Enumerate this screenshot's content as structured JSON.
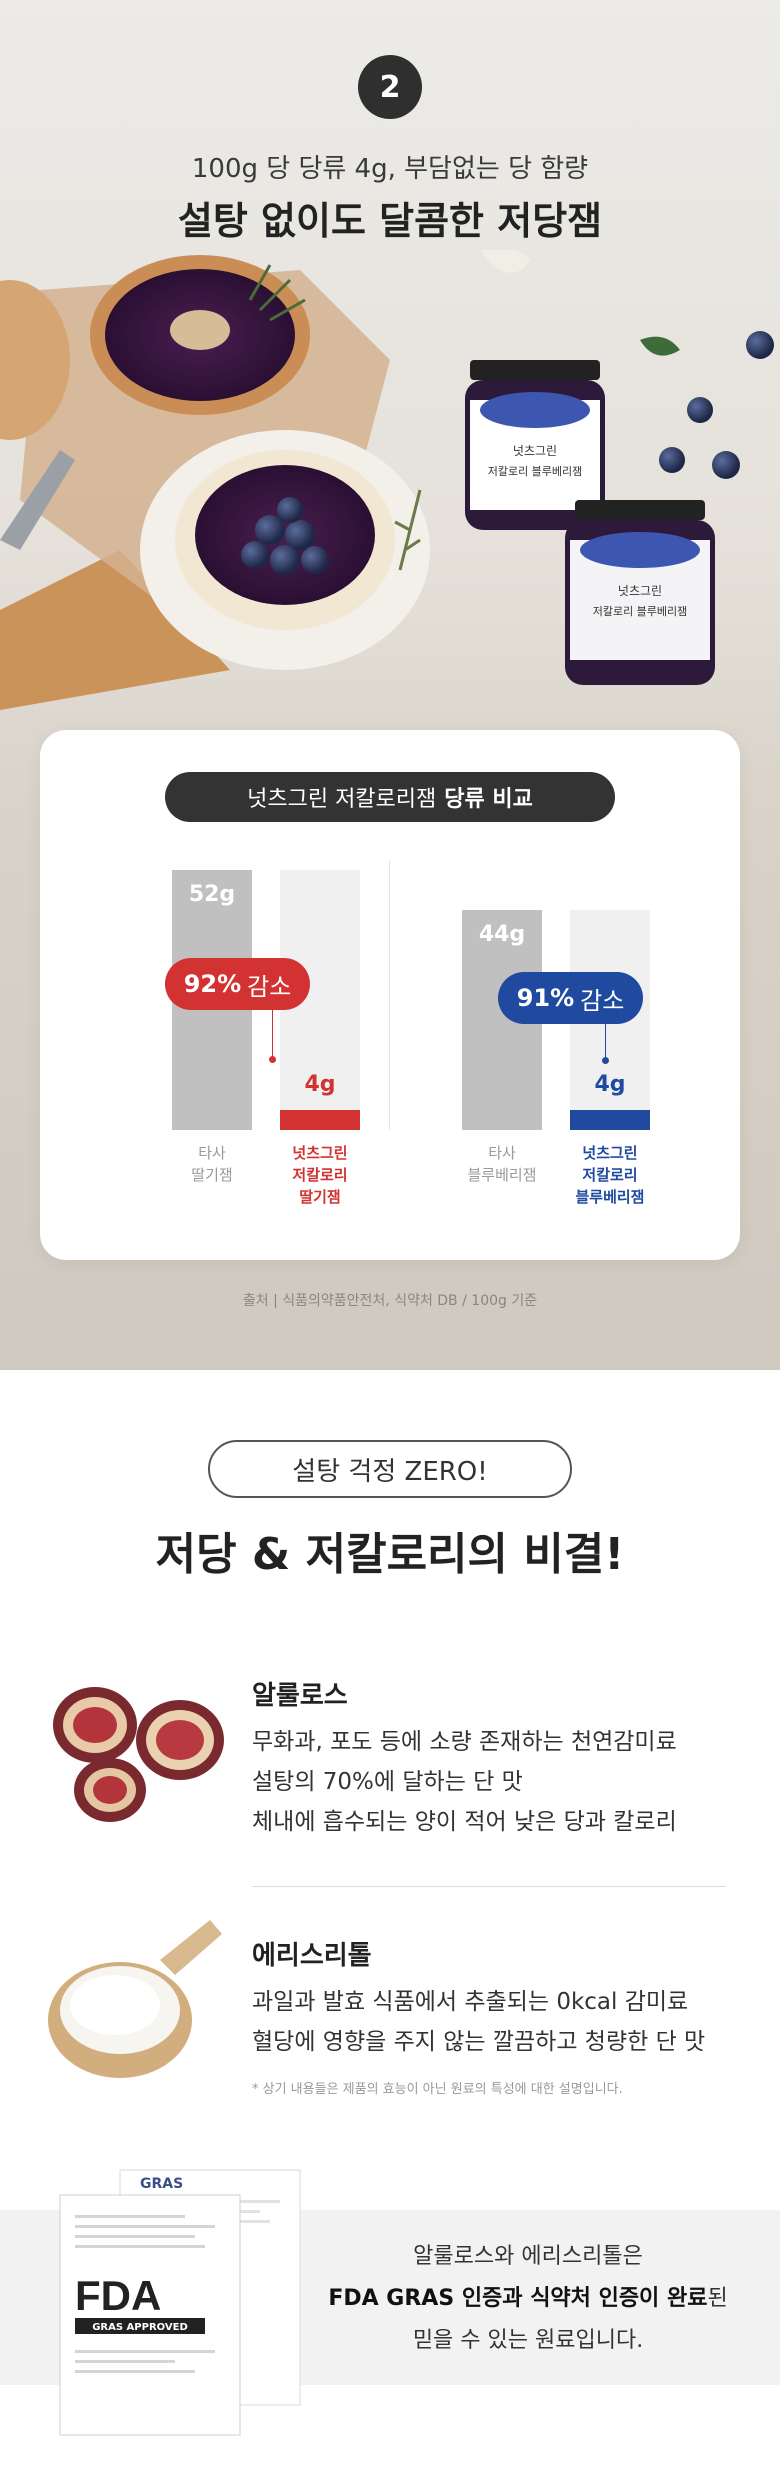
{
  "hero": {
    "step_number": "2",
    "subheadline": "100g 당 당류 4g, 부담없는 당 함량",
    "headline": "설탕 없이도 달콤한 저당잼"
  },
  "jar": {
    "brand": "넛츠그린",
    "product_line1": "저칼로리 블루베리잼"
  },
  "comparison": {
    "title_normal": "넛츠그린 저칼로리잼",
    "title_bold": "당류 비교",
    "groups": [
      {
        "other_value": "52g",
        "ours_value": "4g",
        "reduction_percent": "92%",
        "reduction_label": "감소",
        "other_label": [
          "타사",
          "딸기잼"
        ],
        "ours_label": [
          "넛츠그린",
          "저칼로리",
          "딸기잼"
        ],
        "other_fraction": 1.0,
        "ours_fraction": 0.077,
        "accent": "#d33232"
      },
      {
        "other_value": "44g",
        "ours_value": "4g",
        "reduction_percent": "91%",
        "reduction_label": "감소",
        "other_label": [
          "타사",
          "블루베리잼"
        ],
        "ours_label": [
          "넛츠그린",
          "저칼로리",
          "블루베리잼"
        ],
        "other_fraction": 1.0,
        "ours_fraction": 0.091,
        "accent": "#1f4aa0"
      }
    ],
    "source": "출처 | 식품의약품안전처, 식약처 DB / 100g 기준"
  },
  "secret": {
    "pill": "설탕 걱정 ZERO!",
    "headline": "저당 & 저칼로리의 비결!"
  },
  "ingredients": [
    {
      "title": "알룰로스",
      "icon": "fig-icon",
      "lines": [
        "무화과, 포도 등에 소량 존재하는 천연감미료",
        "설탕의 70%에 달하는 단 맛",
        "체내에 흡수되는 양이 적어 낮은 당과 칼로리"
      ]
    },
    {
      "title": "에리스리톨",
      "icon": "sweetener-scoop-icon",
      "lines": [
        "과일과 발효 식품에서 추출되는 0kcal 감미료",
        "혈당에 영향을 주지 않는 깔끔하고 청량한 단 맛"
      ]
    }
  ],
  "note": "* 상기 내용들은 제품의 효능이 아닌 원료의 특성에 대한 설명입니다.",
  "cert": {
    "doc_label": "GRAS",
    "fda_logo_text": "FDA",
    "fda_sub": "GRAS APPROVED",
    "line1": "알룰로스와 에리스리톨은",
    "line2_bold": "FDA GRAS 인증과 식약처 인증이 완료",
    "line2_normal": "된",
    "line3": "믿을 수 있는 원료입니다."
  }
}
